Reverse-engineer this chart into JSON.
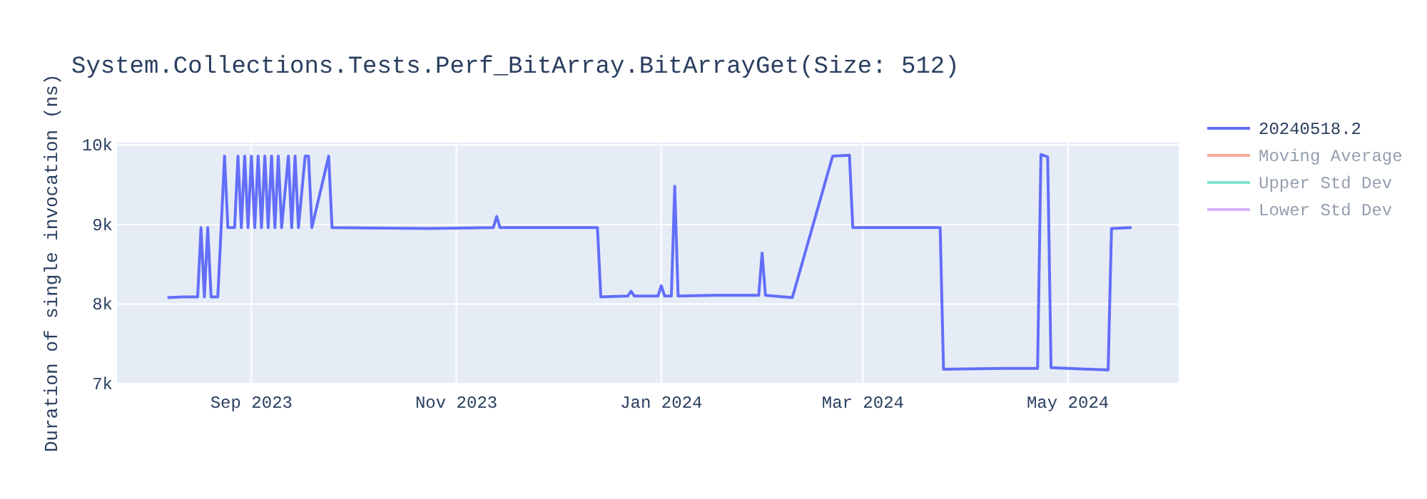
{
  "chart_data": {
    "type": "line",
    "title": "System.Collections.Tests.Perf_BitArray.BitArrayGet(Size: 512)",
    "ylabel": "Duration of single invocation (ns)",
    "x": [
      "2023-08-07",
      "2023-08-12",
      "2023-08-16",
      "2023-08-17",
      "2023-08-18",
      "2023-08-19",
      "2023-08-20",
      "2023-08-22",
      "2023-08-23",
      "2023-08-24",
      "2023-08-25",
      "2023-08-27",
      "2023-08-28",
      "2023-08-29",
      "2023-08-30",
      "2023-08-31",
      "2023-09-01",
      "2023-09-02",
      "2023-09-03",
      "2023-09-04",
      "2023-09-05",
      "2023-09-06",
      "2023-09-07",
      "2023-09-08",
      "2023-09-09",
      "2023-09-10",
      "2023-09-12",
      "2023-09-13",
      "2023-09-14",
      "2023-09-15",
      "2023-09-17",
      "2023-09-18",
      "2023-09-19",
      "2023-09-24",
      "2023-09-25",
      "2023-10-24",
      "2023-11-12",
      "2023-11-13",
      "2023-11-14",
      "2023-12-13",
      "2023-12-14",
      "2023-12-22",
      "2023-12-23",
      "2023-12-24",
      "2023-12-31",
      "2024-01-01",
      "2024-01-02",
      "2024-01-04",
      "2024-01-05",
      "2024-01-06",
      "2024-01-17",
      "2024-01-30",
      "2024-01-31",
      "2024-02-01",
      "2024-02-09",
      "2024-02-21",
      "2024-02-26",
      "2024-02-27",
      "2024-03-24",
      "2024-03-25",
      "2024-04-12",
      "2024-04-22",
      "2024-04-23",
      "2024-04-25",
      "2024-04-26",
      "2024-05-13",
      "2024-05-14",
      "2024-05-20"
    ],
    "ylim": [
      7000,
      10030
    ],
    "yticks": [
      {
        "value": 7000,
        "label": "7k"
      },
      {
        "value": 8000,
        "label": "8k"
      },
      {
        "value": 9000,
        "label": "9k"
      },
      {
        "value": 10000,
        "label": "10k"
      }
    ],
    "xlim": [
      "2023-07-23",
      "2024-06-03"
    ],
    "xticks": [
      {
        "value": "2023-09-01",
        "label": "Sep 2023"
      },
      {
        "value": "2023-11-01",
        "label": "Nov 2023"
      },
      {
        "value": "2024-01-01",
        "label": "Jan 2024"
      },
      {
        "value": "2024-03-01",
        "label": "Mar 2024"
      },
      {
        "value": "2024-05-01",
        "label": "May 2024"
      }
    ],
    "grid": true,
    "legend": "top right",
    "marker": "none",
    "line_style": "solid",
    "series": [
      {
        "name": "20240518.2",
        "color": "#636efa",
        "values": [
          8080,
          8090,
          8090,
          8960,
          8090,
          8960,
          8090,
          8090,
          8960,
          9860,
          8960,
          8960,
          9860,
          8960,
          9860,
          8960,
          9860,
          8960,
          9860,
          8960,
          9860,
          8960,
          9860,
          8960,
          9860,
          8960,
          9860,
          8960,
          9860,
          8960,
          9860,
          9860,
          8960,
          9860,
          8960,
          8950,
          8960,
          9100,
          8960,
          8960,
          8090,
          8100,
          8160,
          8100,
          8100,
          8230,
          8100,
          8100,
          9480,
          8100,
          8110,
          8110,
          8640,
          8110,
          8080,
          9860,
          9870,
          8960,
          8960,
          7180,
          7190,
          7190,
          9880,
          9850,
          7200,
          7170,
          8950,
          8960
        ]
      },
      {
        "name": "Moving Average",
        "color": "#ef553b",
        "values": [
          null,
          null,
          null,
          null,
          null,
          null,
          null,
          null,
          null,
          null,
          null,
          null,
          null,
          null,
          null,
          null,
          null,
          null,
          null,
          null,
          null,
          null,
          null,
          null,
          null,
          null,
          null,
          null,
          null,
          null,
          null,
          null,
          null,
          null,
          null,
          null,
          null,
          null,
          null,
          null,
          null,
          null,
          null,
          null,
          null,
          null,
          null,
          null,
          null,
          null,
          null,
          null,
          null,
          null,
          null,
          null,
          null,
          null,
          null,
          null,
          null,
          null,
          null,
          null,
          null,
          null,
          null,
          null
        ]
      },
      {
        "name": "Upper Std Dev",
        "color": "#00cc96",
        "values": [
          null,
          null,
          null,
          null,
          null,
          null,
          null,
          null,
          null,
          null,
          null,
          null,
          null,
          null,
          null,
          null,
          null,
          null,
          null,
          null,
          null,
          null,
          null,
          null,
          null,
          null,
          null,
          null,
          null,
          null,
          null,
          null,
          null,
          null,
          null,
          null,
          null,
          null,
          null,
          null,
          null,
          null,
          null,
          null,
          null,
          null,
          null,
          null,
          null,
          null,
          null,
          null,
          null,
          null,
          null,
          null,
          null,
          null,
          null,
          null,
          null,
          null,
          null,
          null,
          null,
          null,
          null,
          null
        ]
      },
      {
        "name": "Lower Std Dev",
        "color": "#ab63fa",
        "values": [
          null,
          null,
          null,
          null,
          null,
          null,
          null,
          null,
          null,
          null,
          null,
          null,
          null,
          null,
          null,
          null,
          null,
          null,
          null,
          null,
          null,
          null,
          null,
          null,
          null,
          null,
          null,
          null,
          null,
          null,
          null,
          null,
          null,
          null,
          null,
          null,
          null,
          null,
          null,
          null,
          null,
          null,
          null,
          null,
          null,
          null,
          null,
          null,
          null,
          null,
          null,
          null,
          null,
          null,
          null,
          null,
          null,
          null,
          null,
          null,
          null,
          null,
          null,
          null,
          null,
          null,
          null,
          null
        ]
      }
    ]
  }
}
